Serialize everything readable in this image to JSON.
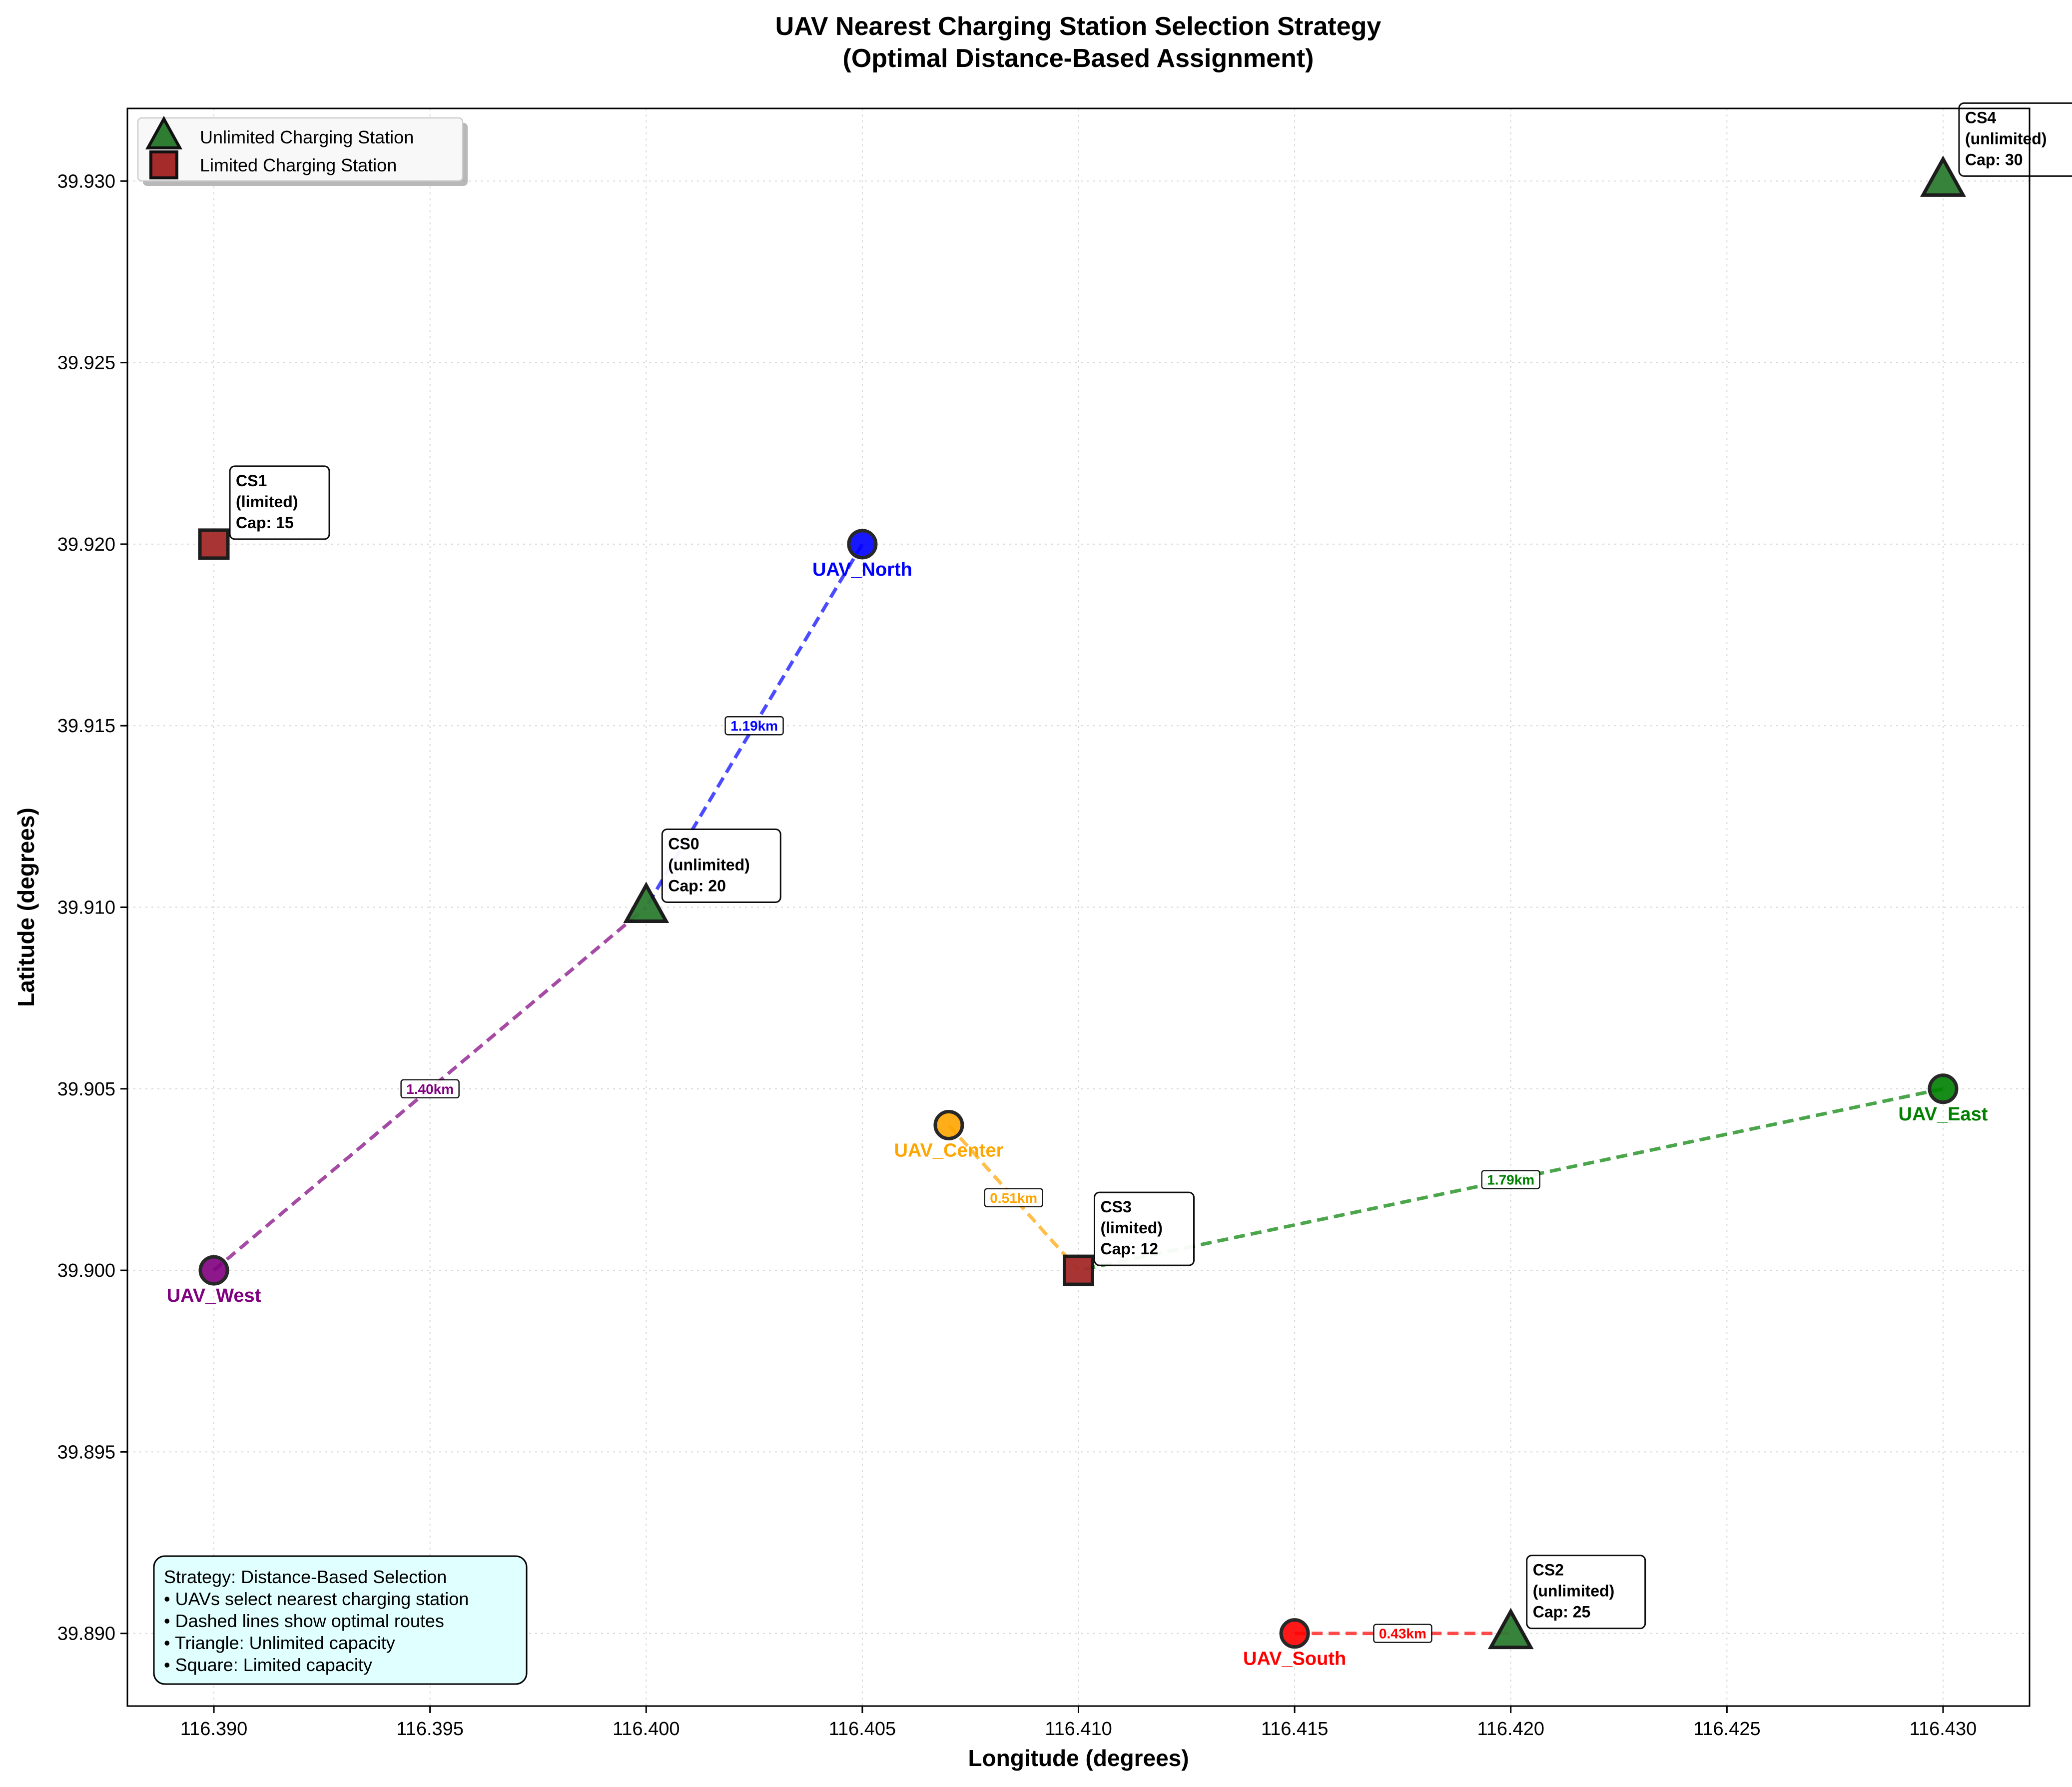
{
  "chart_data": {
    "type": "scatter",
    "title": [
      "UAV Nearest Charging Station Selection Strategy",
      "(Optimal Distance-Based Assignment)"
    ],
    "xlabel": "Longitude (degrees)",
    "ylabel": "Latitude (degrees)",
    "xlim": [
      116.388,
      116.432
    ],
    "ylim": [
      39.888,
      39.932
    ],
    "xticks": [
      "116.390",
      "116.395",
      "116.400",
      "116.405",
      "116.410",
      "116.415",
      "116.420",
      "116.425",
      "116.430"
    ],
    "yticks": [
      "39.890",
      "39.895",
      "39.900",
      "39.905",
      "39.910",
      "39.915",
      "39.920",
      "39.925",
      "39.930"
    ],
    "grid": true,
    "legend": {
      "placement": "top-left",
      "entries": [
        {
          "label": "Unlimited Charging Station",
          "marker": "triangle",
          "color": "#2e7d32"
        },
        {
          "label": "Limited Charging Station",
          "marker": "square",
          "color": "#a52a2a"
        }
      ]
    },
    "stations": [
      {
        "id": "CS0",
        "lon": 116.4,
        "lat": 39.91,
        "type": "unlimited",
        "capacity": 20,
        "lines": [
          "CS0",
          "(unlimited)",
          "Cap: 20"
        ]
      },
      {
        "id": "CS1",
        "lon": 116.39,
        "lat": 39.92,
        "type": "limited",
        "capacity": 15,
        "lines": [
          "CS1",
          "(limited)",
          "Cap: 15"
        ]
      },
      {
        "id": "CS2",
        "lon": 116.42,
        "lat": 39.89,
        "type": "unlimited",
        "capacity": 25,
        "lines": [
          "CS2",
          "(unlimited)",
          "Cap: 25"
        ]
      },
      {
        "id": "CS3",
        "lon": 116.41,
        "lat": 39.9,
        "type": "limited",
        "capacity": 12,
        "lines": [
          "CS3",
          "(limited)",
          "Cap: 12"
        ]
      },
      {
        "id": "CS4",
        "lon": 116.43,
        "lat": 39.93,
        "type": "unlimited",
        "capacity": 30,
        "lines": [
          "CS4",
          "(unlimited)",
          "Cap: 30"
        ]
      }
    ],
    "uavs": [
      {
        "name": "UAV_North",
        "lon": 116.405,
        "lat": 39.92,
        "color": "#0000ff",
        "station": "CS0",
        "distance": "1.19km"
      },
      {
        "name": "UAV_West",
        "lon": 116.39,
        "lat": 39.9,
        "color": "#800080",
        "station": "CS0",
        "distance": "1.40km"
      },
      {
        "name": "UAV_Center",
        "lon": 116.407,
        "lat": 39.904,
        "color": "#ffa500",
        "station": "CS3",
        "distance": "0.51km"
      },
      {
        "name": "UAV_East",
        "lon": 116.43,
        "lat": 39.905,
        "color": "#008000",
        "station": "CS3",
        "distance": "1.79km"
      },
      {
        "name": "UAV_South",
        "lon": 116.415,
        "lat": 39.89,
        "color": "#ff0000",
        "station": "CS2",
        "distance": "0.43km"
      }
    ],
    "info_box": [
      "Strategy: Distance-Based Selection",
      "• UAVs select nearest charging station",
      "• Dashed lines show optimal routes",
      "• Triangle: Unlimited capacity",
      "• Square: Limited capacity"
    ]
  }
}
